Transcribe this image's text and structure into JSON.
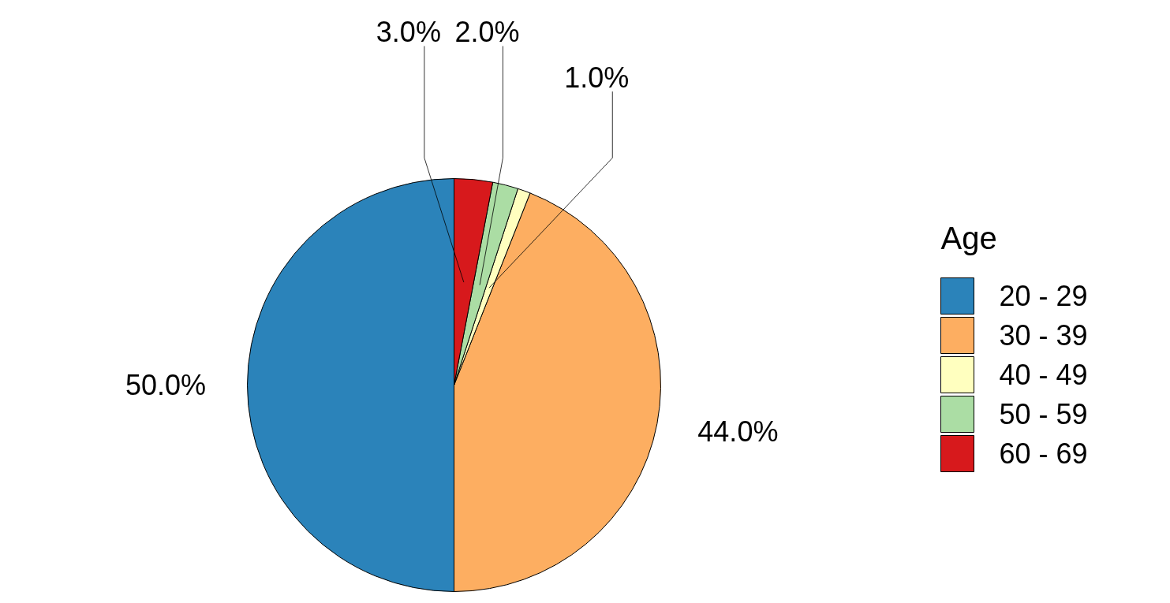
{
  "chart_data": {
    "type": "pie",
    "legend_title": "Age",
    "legend": "right",
    "categories": [
      "20 - 29",
      "30 - 39",
      "40 - 49",
      "50 - 59",
      "60 - 69"
    ],
    "values": [
      50,
      44,
      1,
      2,
      3
    ],
    "colors": [
      "#2b83ba",
      "#fdae61",
      "#ffffbf",
      "#abdda4",
      "#d7191c"
    ],
    "value_labels": [
      "50.0%",
      "44.0%",
      "1.0%",
      "2.0%",
      "3.0%"
    ]
  }
}
